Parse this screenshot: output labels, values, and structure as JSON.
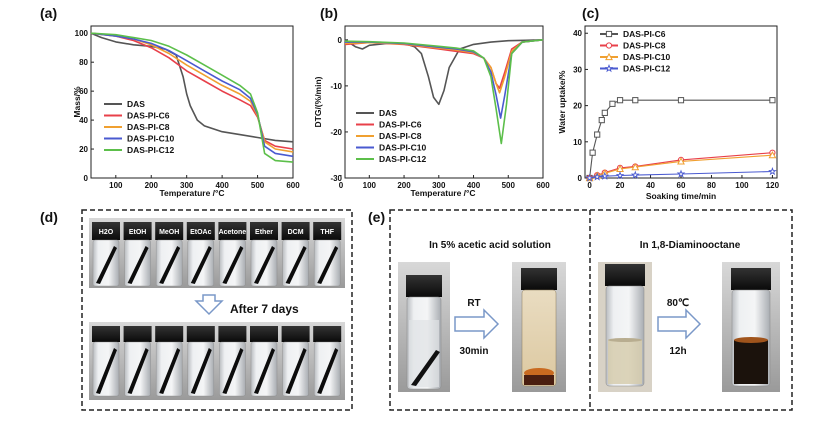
{
  "chart_data": [
    {
      "id": "a",
      "panel_label": "(a)",
      "type": "line",
      "xlabel": "Temperature /°C",
      "ylabel": "Mass/%",
      "xlim": [
        30,
        600
      ],
      "ylim": [
        0,
        105
      ],
      "xticks": [
        100,
        200,
        300,
        400,
        500,
        600
      ],
      "yticks": [
        0,
        20,
        40,
        60,
        80,
        100
      ],
      "legend_position": "bottom-left",
      "series": [
        {
          "name": "DAS",
          "color": "#555555",
          "x": [
            30,
            60,
            100,
            150,
            200,
            240,
            270,
            290,
            300,
            310,
            330,
            350,
            400,
            450,
            500,
            550,
            600
          ],
          "y": [
            100,
            97,
            94,
            92,
            91,
            89,
            85,
            70,
            58,
            50,
            40,
            36,
            32,
            30,
            28,
            26,
            25
          ]
        },
        {
          "name": "DAS-PI-C6",
          "color": "#e8404a",
          "x": [
            30,
            100,
            150,
            200,
            250,
            300,
            350,
            400,
            450,
            480,
            500,
            520,
            550,
            600
          ],
          "y": [
            100,
            98,
            95,
            90,
            83,
            74,
            67,
            60,
            54,
            50,
            42,
            26,
            22,
            20
          ]
        },
        {
          "name": "DAS-PI-C8",
          "color": "#f0a030",
          "x": [
            30,
            100,
            150,
            200,
            250,
            300,
            350,
            400,
            450,
            480,
            500,
            520,
            550,
            600
          ],
          "y": [
            100,
            98,
            96,
            92,
            86,
            78,
            71,
            64,
            58,
            53,
            43,
            25,
            20,
            18
          ]
        },
        {
          "name": "DAS-PI-C10",
          "color": "#4a5ad0",
          "x": [
            30,
            100,
            150,
            200,
            250,
            300,
            350,
            400,
            450,
            480,
            500,
            520,
            550,
            600
          ],
          "y": [
            100,
            98,
            96,
            93,
            88,
            81,
            74,
            67,
            61,
            55,
            44,
            22,
            17,
            15
          ]
        },
        {
          "name": "DAS-PI-C12",
          "color": "#5cbf4a",
          "x": [
            30,
            100,
            150,
            200,
            250,
            300,
            350,
            400,
            450,
            480,
            500,
            520,
            550,
            600
          ],
          "y": [
            100,
            99,
            97,
            95,
            91,
            85,
            78,
            71,
            64,
            58,
            45,
            17,
            12,
            11
          ]
        }
      ]
    },
    {
      "id": "b",
      "panel_label": "(b)",
      "type": "line",
      "xlabel": "Temperature /°C",
      "ylabel": "DTG/(%/min)",
      "xlim": [
        30,
        600
      ],
      "ylim": [
        -30,
        3
      ],
      "xticks": [
        0,
        100,
        200,
        300,
        400,
        500,
        600
      ],
      "yticks": [
        0,
        -10,
        -20,
        -30
      ],
      "legend_position": "bottom-left",
      "series": [
        {
          "name": "DAS",
          "color": "#555555",
          "x": [
            30,
            60,
            80,
            100,
            150,
            200,
            230,
            250,
            270,
            285,
            300,
            315,
            330,
            360,
            400,
            450,
            500,
            550,
            600
          ],
          "y": [
            0,
            -1.5,
            -2,
            -1.2,
            -0.8,
            -0.8,
            -1.5,
            -3,
            -8,
            -12.5,
            -14,
            -11,
            -6,
            -2,
            -1,
            -0.5,
            -0.2,
            -0.1,
            0
          ]
        },
        {
          "name": "DAS-PI-C6",
          "color": "#e8404a",
          "x": [
            30,
            100,
            200,
            300,
            350,
            400,
            430,
            450,
            465,
            475,
            490,
            510,
            540,
            600
          ],
          "y": [
            -1,
            -0.6,
            -1,
            -2,
            -2.5,
            -3,
            -4,
            -6,
            -9.5,
            -10.5,
            -7,
            -2,
            -0.5,
            0
          ]
        },
        {
          "name": "DAS-PI-C8",
          "color": "#f0a030",
          "x": [
            30,
            100,
            200,
            300,
            350,
            400,
            430,
            450,
            465,
            475,
            490,
            510,
            540,
            600
          ],
          "y": [
            -0.8,
            -0.6,
            -0.9,
            -1.8,
            -2.2,
            -2.8,
            -4,
            -6,
            -9.5,
            -11.5,
            -8,
            -2.5,
            -0.5,
            0
          ]
        },
        {
          "name": "DAS-PI-C10",
          "color": "#4a5ad0",
          "x": [
            30,
            100,
            200,
            300,
            350,
            400,
            430,
            450,
            465,
            478,
            490,
            510,
            540,
            600
          ],
          "y": [
            -0.5,
            -0.5,
            -0.8,
            -1.6,
            -2,
            -2.6,
            -4,
            -7,
            -12,
            -17,
            -12,
            -3,
            -0.5,
            0
          ]
        },
        {
          "name": "DAS-PI-C12",
          "color": "#5cbf4a",
          "x": [
            30,
            100,
            200,
            300,
            350,
            400,
            430,
            450,
            465,
            480,
            495,
            510,
            540,
            600
          ],
          "y": [
            -0.3,
            -0.4,
            -0.7,
            -1.4,
            -1.8,
            -2.4,
            -4,
            -8,
            -15,
            -22.5,
            -14,
            -3,
            -0.5,
            0
          ]
        }
      ]
    },
    {
      "id": "c",
      "panel_label": "(c)",
      "type": "line",
      "xlabel": "Soaking time/min",
      "ylabel": "Water uptake/%",
      "xlim": [
        -3,
        123
      ],
      "ylim": [
        0,
        42
      ],
      "xticks": [
        0,
        20,
        40,
        60,
        80,
        100,
        120
      ],
      "yticks": [
        0,
        10,
        20,
        30,
        40
      ],
      "legend_position": "top-left",
      "series": [
        {
          "name": "DAS-PI-C6",
          "color": "#555555",
          "marker": "square",
          "x": [
            0,
            2,
            5,
            8,
            10,
            15,
            20,
            30,
            60,
            120
          ],
          "y": [
            0,
            7,
            12,
            16,
            18,
            20.5,
            21.5,
            21.5,
            21.5,
            21.5
          ]
        },
        {
          "name": "DAS-PI-C8",
          "color": "#e8404a",
          "marker": "circle",
          "x": [
            0,
            5,
            10,
            20,
            30,
            60,
            120
          ],
          "y": [
            0,
            0.8,
            1.5,
            2.8,
            3.2,
            5,
            7
          ]
        },
        {
          "name": "DAS-PI-C10",
          "color": "#f0a030",
          "marker": "triangle",
          "x": [
            0,
            5,
            10,
            20,
            30,
            60,
            120
          ],
          "y": [
            0,
            0.7,
            1.3,
            2.5,
            3,
            4.6,
            6.3
          ]
        },
        {
          "name": "DAS-PI-C12",
          "color": "#4a5ad0",
          "marker": "star",
          "x": [
            0,
            5,
            10,
            20,
            30,
            60,
            120
          ],
          "y": [
            0,
            0.3,
            0.5,
            0.7,
            0.8,
            1.1,
            1.8
          ]
        }
      ]
    }
  ],
  "panel_d": {
    "label": "(d)",
    "solvents": [
      "H2O",
      "EtOH",
      "MeOH",
      "EtOAc",
      "Acetone",
      "Ether",
      "DCM",
      "THF"
    ],
    "after_label": "After 7 days"
  },
  "panel_e": {
    "label": "(e)",
    "left_title": "In 5% acetic acid solution",
    "left_condition_top": "RT",
    "left_condition_bottom": "30min",
    "right_title": "In 1,8-Diaminooctane",
    "right_condition_top": "80℃",
    "right_condition_bottom": "12h"
  }
}
